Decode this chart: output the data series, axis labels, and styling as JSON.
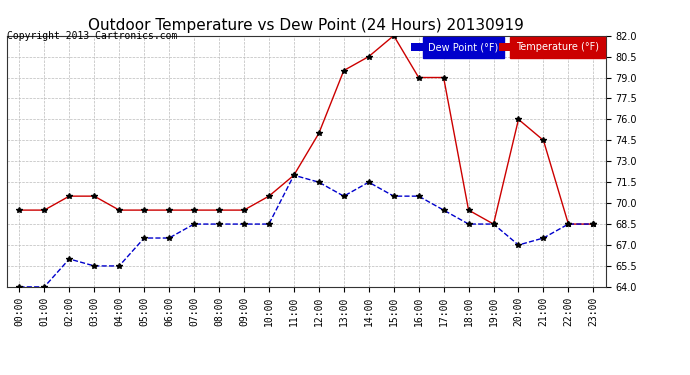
{
  "title": "Outdoor Temperature vs Dew Point (24 Hours) 20130919",
  "copyright": "Copyright 2013 Cartronics.com",
  "background_color": "#ffffff",
  "plot_background": "#ffffff",
  "grid_color": "#bbbbbb",
  "hours": [
    "00:00",
    "01:00",
    "02:00",
    "03:00",
    "04:00",
    "05:00",
    "06:00",
    "07:00",
    "08:00",
    "09:00",
    "10:00",
    "11:00",
    "12:00",
    "13:00",
    "14:00",
    "15:00",
    "16:00",
    "17:00",
    "18:00",
    "19:00",
    "20:00",
    "21:00",
    "22:00",
    "23:00"
  ],
  "temperature": [
    69.5,
    69.5,
    70.5,
    70.5,
    69.5,
    69.5,
    69.5,
    69.5,
    69.5,
    69.5,
    70.5,
    72.0,
    75.0,
    79.5,
    80.5,
    82.0,
    79.0,
    79.0,
    69.5,
    68.5,
    76.0,
    74.5,
    68.5,
    68.5
  ],
  "dew_point": [
    64.0,
    64.0,
    66.0,
    65.5,
    65.5,
    67.5,
    67.5,
    68.5,
    68.5,
    68.5,
    68.5,
    72.0,
    71.5,
    70.5,
    71.5,
    70.5,
    70.5,
    69.5,
    68.5,
    68.5,
    67.0,
    67.5,
    68.5,
    68.5
  ],
  "temp_color": "#cc0000",
  "dew_color": "#0000cc",
  "marker_color": "#000000",
  "ylim_min": 64.0,
  "ylim_max": 82.0,
  "yticks": [
    64.0,
    65.5,
    67.0,
    68.5,
    70.0,
    71.5,
    73.0,
    74.5,
    76.0,
    77.5,
    79.0,
    80.5,
    82.0
  ],
  "legend_dew_label": "Dew Point (°F)",
  "legend_temp_label": "Temperature (°F)",
  "legend_dew_bg": "#0000cc",
  "legend_temp_bg": "#cc0000",
  "title_fontsize": 11,
  "copyright_fontsize": 7,
  "tick_fontsize": 7
}
